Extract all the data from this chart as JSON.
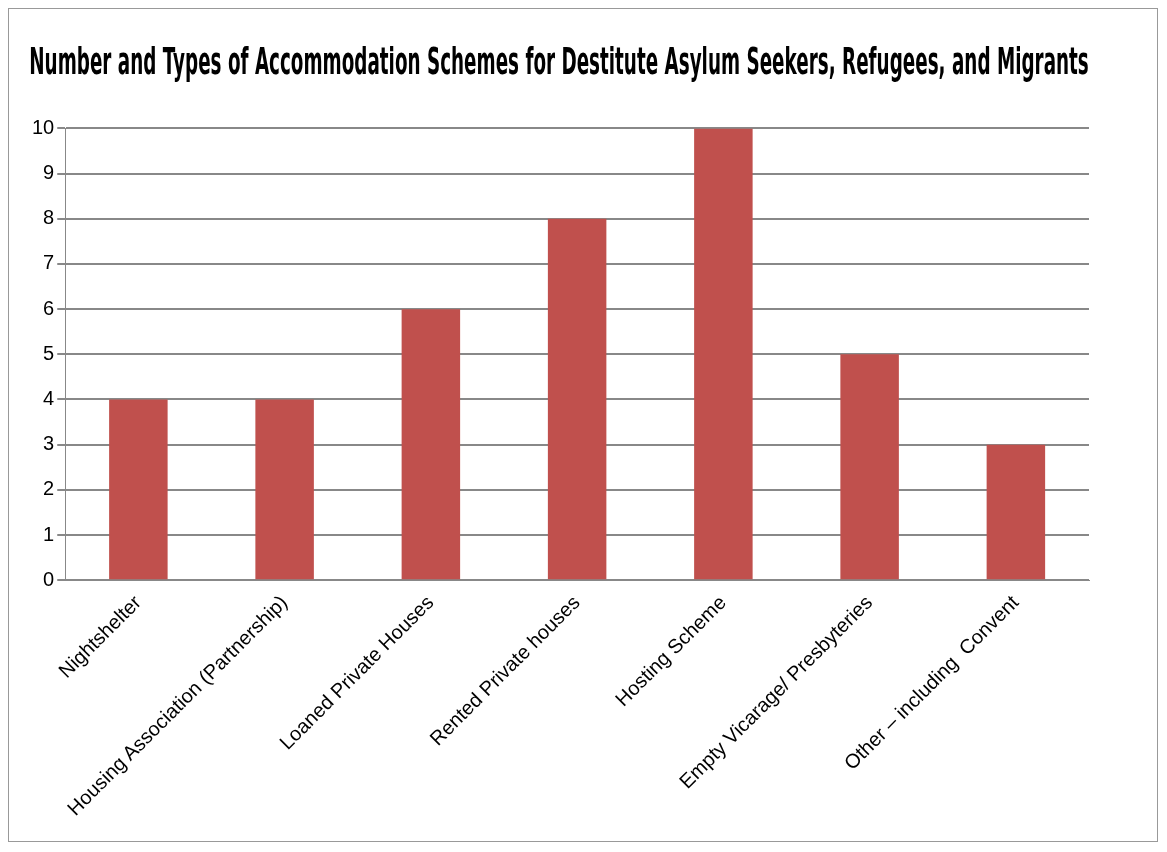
{
  "chart_data": {
    "type": "bar",
    "title": "Number and Types of Accommodation Schemes for Destitute Asylum Seekers, Refugees, and Migrants",
    "categories": [
      "Nightshelter",
      "Housing Association (Partnership)",
      "Loaned Private Houses",
      "Rented Private houses",
      "Hosting Scheme",
      "Empty Vicarage/ Presbyteries",
      "Other – including  Convent"
    ],
    "values": [
      4,
      4,
      6,
      8,
      10,
      5,
      3
    ],
    "color": "#c0504d",
    "ylim": [
      0,
      10
    ],
    "yticks": [
      0,
      1,
      2,
      3,
      4,
      5,
      6,
      7,
      8,
      9,
      10
    ],
    "grid": "y"
  }
}
